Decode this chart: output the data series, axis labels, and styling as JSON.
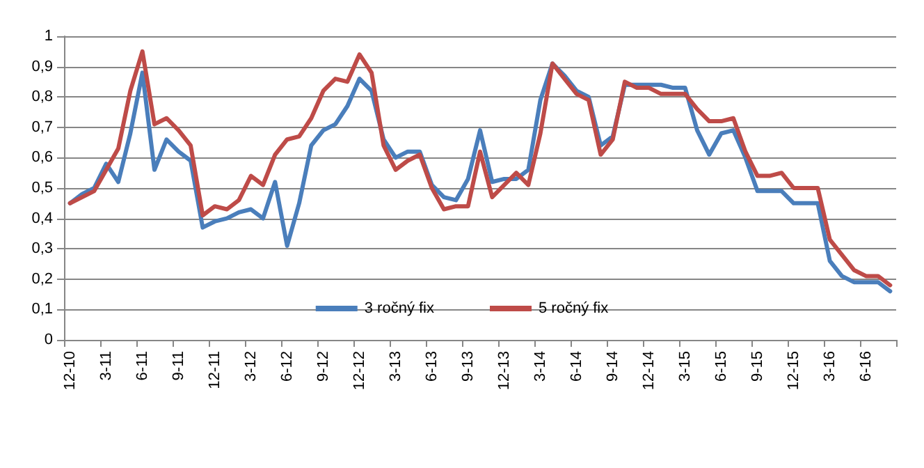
{
  "chart_data": {
    "type": "line",
    "categories": [
      "12-10",
      null,
      null,
      "3-11",
      null,
      null,
      "6-11",
      null,
      null,
      "9-11",
      null,
      null,
      "12-11",
      null,
      null,
      "3-12",
      null,
      null,
      "6-12",
      null,
      null,
      "9-12",
      null,
      null,
      "12-12",
      null,
      null,
      "3-13",
      null,
      null,
      "6-13",
      null,
      null,
      "9-13",
      null,
      null,
      "12-13",
      null,
      null,
      "3-14",
      null,
      null,
      "6-14",
      null,
      null,
      "9-14",
      null,
      null,
      "12-14",
      null,
      null,
      "3-15",
      null,
      null,
      "6-15",
      null,
      null,
      "9-15",
      null,
      null,
      "12-15",
      null,
      null,
      "3-16",
      null,
      null,
      "6-16",
      null,
      null
    ],
    "series": [
      {
        "name": "3 ročný fix",
        "color": "#4a7ebb",
        "values": [
          0.45,
          0.48,
          0.5,
          0.58,
          0.52,
          0.68,
          0.88,
          0.56,
          0.66,
          0.62,
          0.59,
          0.37,
          0.39,
          0.4,
          0.42,
          0.43,
          0.4,
          0.52,
          0.31,
          0.45,
          0.64,
          0.69,
          0.71,
          0.77,
          0.86,
          0.82,
          0.66,
          0.6,
          0.62,
          0.62,
          0.51,
          0.47,
          0.46,
          0.53,
          0.69,
          0.52,
          0.53,
          0.53,
          0.56,
          0.79,
          0.91,
          0.87,
          0.82,
          0.8,
          0.64,
          0.67,
          0.84,
          0.84,
          0.84,
          0.84,
          0.83,
          0.83,
          0.69,
          0.61,
          0.68,
          0.69,
          0.6,
          0.49,
          0.49,
          0.49,
          0.45,
          0.45,
          0.45,
          0.26,
          0.21,
          0.19,
          0.19,
          0.19,
          0.16
        ]
      },
      {
        "name": "5 ročný fix",
        "color": "#be4b48",
        "values": [
          0.45,
          0.47,
          0.49,
          0.56,
          0.63,
          0.82,
          0.95,
          0.71,
          0.73,
          0.69,
          0.64,
          0.41,
          0.44,
          0.43,
          0.46,
          0.54,
          0.51,
          0.61,
          0.66,
          0.67,
          0.73,
          0.82,
          0.86,
          0.85,
          0.94,
          0.88,
          0.64,
          0.56,
          0.59,
          0.61,
          0.5,
          0.43,
          0.44,
          0.44,
          0.62,
          0.47,
          0.51,
          0.55,
          0.51,
          0.68,
          0.91,
          0.86,
          0.81,
          0.79,
          0.61,
          0.66,
          0.85,
          0.83,
          0.83,
          0.81,
          0.81,
          0.81,
          0.76,
          0.72,
          0.72,
          0.73,
          0.62,
          0.54,
          0.54,
          0.55,
          0.5,
          0.5,
          0.5,
          0.33,
          0.28,
          0.23,
          0.21,
          0.21,
          0.18
        ]
      }
    ],
    "ylim": [
      0,
      1
    ],
    "yticks": [
      0,
      {
        "value": 0.1,
        "label": "0,1"
      },
      {
        "value": 0.2,
        "label": "0,2"
      },
      {
        "value": 0.3,
        "label": "0,3"
      },
      {
        "value": 0.4,
        "label": "0,4"
      },
      {
        "value": 0.5,
        "label": "0,5"
      },
      {
        "value": 0.6,
        "label": "0,6"
      },
      {
        "value": 0.7,
        "label": "0,7"
      },
      {
        "value": 0.8,
        "label": "0,8"
      },
      {
        "value": 0.9,
        "label": "0,9"
      },
      1
    ],
    "grid": "y",
    "legend": "bottom",
    "marker": "none",
    "line_style": "solid"
  }
}
